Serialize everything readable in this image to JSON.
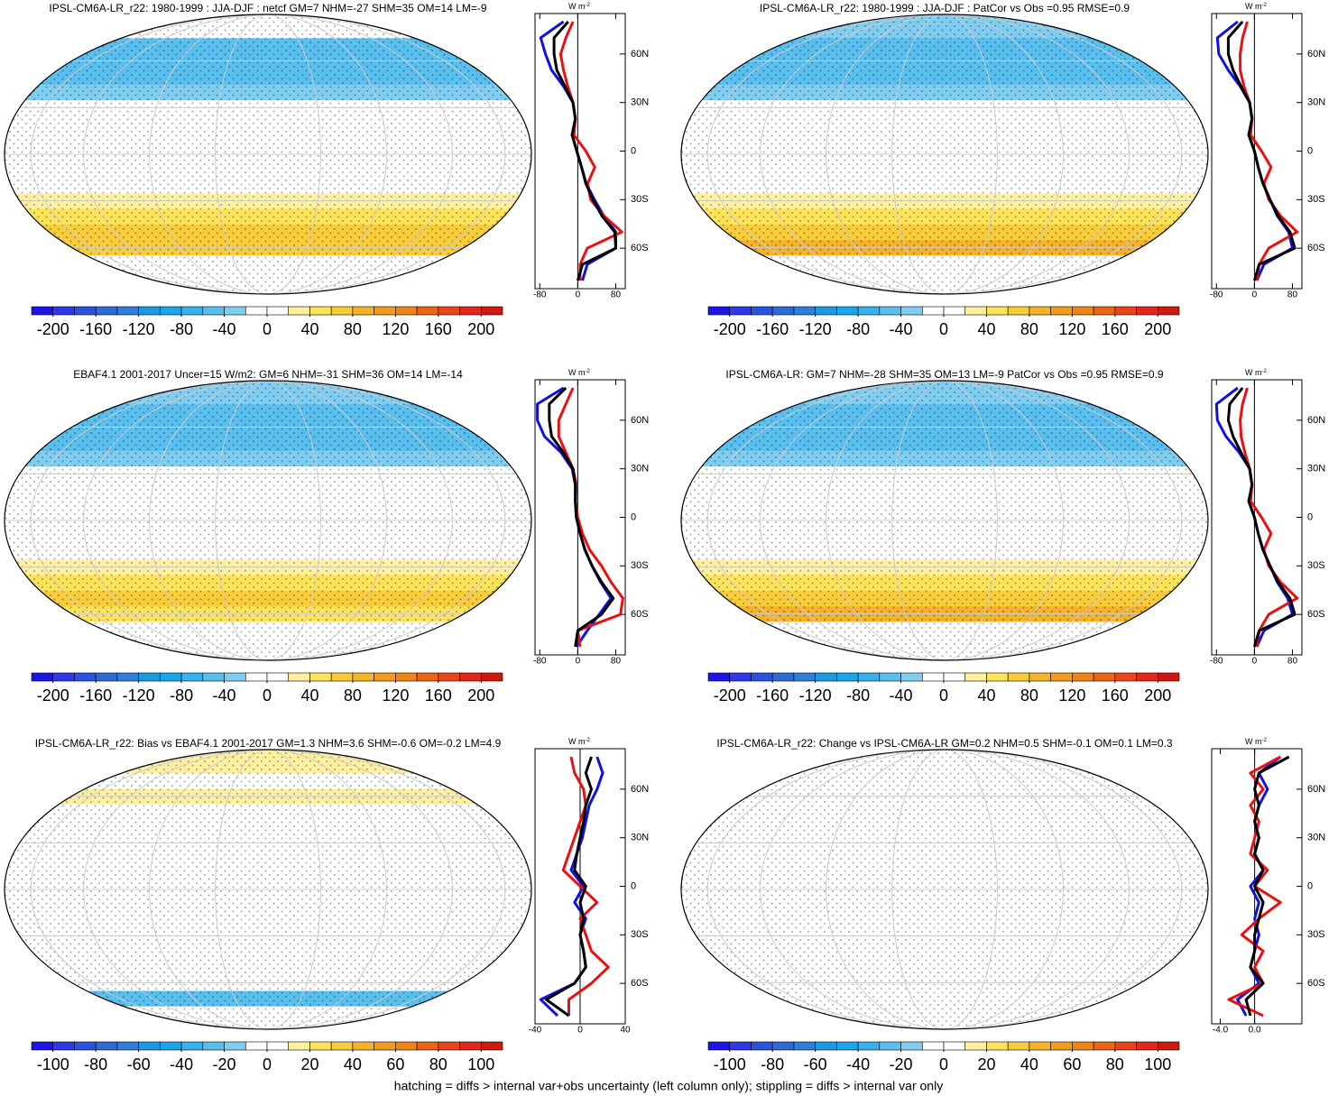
{
  "chart_data": [
    {
      "type": "zonal-map",
      "title": "IPSL-CM6A-LR_r22: 1980-1999 : JJA-DJF : netcf GM=7 NHM=-27 SHM=35 OM=14 LM=-9",
      "unit": "W m",
      "unit_sup": "-2",
      "y": [
        -80,
        -70,
        -60,
        -50,
        -40,
        -30,
        -20,
        -10,
        0,
        10,
        20,
        30,
        40,
        50,
        60,
        70,
        80
      ],
      "series": [
        {
          "color": "#1010e0",
          "values": [
            10,
            20,
            80,
            80,
            55,
            35,
            18,
            8,
            -2,
            -12,
            -5,
            -10,
            -30,
            -55,
            -68,
            -78,
            -30
          ]
        },
        {
          "color": "#e81010",
          "values": [
            5,
            5,
            20,
            93,
            55,
            27,
            21,
            36,
            17,
            -8,
            -5,
            -10,
            -21,
            -30,
            -36,
            -25,
            -10
          ]
        },
        {
          "color": "#000000",
          "values": [
            0,
            10,
            80,
            78,
            51,
            32,
            17,
            8,
            -2,
            -12,
            -5,
            -10,
            -27,
            -44,
            -50,
            -50,
            -20
          ]
        }
      ],
      "xlim": [
        -90,
        100
      ],
      "xticks": [
        -80,
        0,
        80
      ],
      "ylim": [
        -85,
        85
      ],
      "yticks": [
        {
          "value": 60,
          "label": "60N"
        },
        {
          "value": 30,
          "label": "30N"
        },
        0,
        {
          "value": -30,
          "label": "30S"
        },
        {
          "value": -60,
          "label": "60S"
        }
      ],
      "colorbar": {
        "lim": [
          -220,
          220
        ],
        "ticks": [
          -200,
          -160,
          -120,
          -80,
          -40,
          0,
          40,
          80,
          120,
          160,
          200
        ]
      }
    },
    {
      "type": "zonal-map",
      "title": "IPSL-CM6A-LR_r22: 1980-1999 : JJA-DJF : PatCor vs Obs =0.95 RMSE=0.9",
      "unit": "W m",
      "unit_sup": "-2",
      "y": [
        -80,
        -70,
        -60,
        -50,
        -40,
        -30,
        -20,
        -10,
        0,
        10,
        20,
        30,
        40,
        50,
        60,
        70,
        80
      ],
      "series": [
        {
          "color": "#1010e0",
          "values": [
            5,
            20,
            80,
            72,
            48,
            33,
            18,
            8,
            0,
            -12,
            -5,
            -10,
            -30,
            -55,
            -75,
            -78,
            -35
          ]
        },
        {
          "color": "#e81010",
          "values": [
            5,
            10,
            30,
            90,
            55,
            30,
            20,
            35,
            15,
            -8,
            -5,
            -10,
            -22,
            -30,
            -30,
            -25,
            -15
          ]
        },
        {
          "color": "#000000",
          "values": [
            0,
            10,
            85,
            75,
            50,
            33,
            18,
            8,
            0,
            -12,
            -5,
            -10,
            -28,
            -45,
            -55,
            -55,
            -25
          ]
        }
      ],
      "xlim": [
        -90,
        100
      ],
      "xticks": [
        -80,
        0,
        80
      ],
      "ylim": [
        -85,
        85
      ],
      "yticks": [
        {
          "value": 60,
          "label": "60N"
        },
        {
          "value": 30,
          "label": "30N"
        },
        0,
        {
          "value": -30,
          "label": "30S"
        },
        {
          "value": -60,
          "label": "60S"
        }
      ],
      "colorbar": {
        "lim": [
          -220,
          220
        ],
        "ticks": [
          -200,
          -160,
          -120,
          -80,
          -40,
          0,
          40,
          80,
          120,
          160,
          200
        ]
      }
    },
    {
      "type": "zonal-map",
      "title": "EBAF4.1 2001-2017 Uncer=15 W/m2: GM=6 NHM=-31 SHM=36 OM=14 LM=-14",
      "unit": "W m",
      "unit_sup": "-2",
      "y": [
        -80,
        -70,
        -60,
        -50,
        -40,
        -30,
        -20,
        -10,
        0,
        10,
        20,
        30,
        40,
        50,
        60,
        70,
        80
      ],
      "series": [
        {
          "color": "#1010e0",
          "values": [
            -3,
            20,
            45,
            70,
            48,
            30,
            15,
            5,
            -3,
            -5,
            -5,
            -12,
            -35,
            -70,
            -85,
            -85,
            -30
          ]
        },
        {
          "color": "#e81010",
          "values": [
            5,
            0,
            90,
            95,
            70,
            50,
            25,
            10,
            0,
            -5,
            -3,
            -10,
            -25,
            -40,
            -40,
            -25,
            -10
          ]
        },
        {
          "color": "#000000",
          "values": [
            -5,
            0,
            50,
            75,
            50,
            30,
            15,
            5,
            -3,
            -5,
            -5,
            -10,
            -30,
            -55,
            -60,
            -60,
            -25
          ]
        }
      ],
      "xlim": [
        -90,
        100
      ],
      "xticks": [
        -80,
        0,
        80
      ],
      "ylim": [
        -85,
        85
      ],
      "yticks": [
        {
          "value": 60,
          "label": "60N"
        },
        {
          "value": 30,
          "label": "30N"
        },
        0,
        {
          "value": -30,
          "label": "30S"
        },
        {
          "value": -60,
          "label": "60S"
        }
      ],
      "colorbar": {
        "lim": [
          -220,
          220
        ],
        "ticks": [
          -200,
          -160,
          -120,
          -80,
          -40,
          0,
          40,
          80,
          120,
          160,
          200
        ]
      }
    },
    {
      "type": "zonal-map",
      "title": "IPSL-CM6A-LR: GM=7 NHM=-28 SHM=35 OM=13 LM=-9 PatCor vs Obs =0.95 RMSE=0.9",
      "unit": "W m",
      "unit_sup": "-2",
      "y": [
        -80,
        -70,
        -60,
        -50,
        -40,
        -30,
        -20,
        -10,
        0,
        10,
        20,
        30,
        40,
        50,
        60,
        70,
        80
      ],
      "series": [
        {
          "color": "#1010e0",
          "values": [
            5,
            20,
            80,
            70,
            48,
            33,
            18,
            8,
            0,
            -12,
            -5,
            -10,
            -32,
            -60,
            -78,
            -80,
            -35
          ]
        },
        {
          "color": "#e81010",
          "values": [
            5,
            10,
            30,
            90,
            55,
            30,
            20,
            35,
            15,
            -8,
            -5,
            -10,
            -20,
            -28,
            -30,
            -25,
            -15
          ]
        },
        {
          "color": "#000000",
          "values": [
            0,
            10,
            85,
            75,
            50,
            33,
            18,
            8,
            0,
            -12,
            -5,
            -10,
            -28,
            -45,
            -55,
            -52,
            -25
          ]
        }
      ],
      "xlim": [
        -90,
        100
      ],
      "xticks": [
        -80,
        0,
        80
      ],
      "ylim": [
        -85,
        85
      ],
      "yticks": [
        {
          "value": 60,
          "label": "60N"
        },
        {
          "value": 30,
          "label": "30N"
        },
        0,
        {
          "value": -30,
          "label": "30S"
        },
        {
          "value": -60,
          "label": "60S"
        }
      ],
      "colorbar": {
        "lim": [
          -220,
          220
        ],
        "ticks": [
          -200,
          -160,
          -120,
          -80,
          -40,
          0,
          40,
          80,
          120,
          160,
          200
        ]
      }
    },
    {
      "type": "zonal-map",
      "title": "IPSL-CM6A-LR_r22: Bias vs EBAF4.1 2001-2017 GM=1.3 NHM=3.6 SHM=-0.6 OM=-0.2 LM=4.9",
      "unit": "W m",
      "unit_sup": "-2",
      "y": [
        -80,
        -70,
        -60,
        -50,
        -40,
        -30,
        -20,
        -10,
        0,
        10,
        20,
        30,
        40,
        50,
        60,
        70,
        80
      ],
      "series": [
        {
          "color": "#1010e0",
          "values": [
            -20,
            -35,
            -5,
            5,
            3,
            0,
            5,
            -5,
            3,
            -8,
            -3,
            2,
            5,
            8,
            15,
            20,
            15
          ]
        },
        {
          "color": "#e81010",
          "values": [
            -10,
            -10,
            10,
            25,
            10,
            5,
            0,
            15,
            0,
            -15,
            -10,
            -5,
            0,
            5,
            3,
            -5,
            -8
          ]
        },
        {
          "color": "#000000",
          "values": [
            -10,
            -30,
            -5,
            5,
            3,
            0,
            3,
            0,
            5,
            -5,
            -3,
            0,
            3,
            5,
            10,
            5,
            10
          ]
        }
      ],
      "xlim": [
        -40,
        40
      ],
      "xticks": [
        -40,
        0,
        40
      ],
      "ylim": [
        -85,
        85
      ],
      "yticks": [
        {
          "value": 60,
          "label": "60N"
        },
        {
          "value": 30,
          "label": "30N"
        },
        0,
        {
          "value": -30,
          "label": "30S"
        },
        {
          "value": -60,
          "label": "60S"
        }
      ],
      "colorbar": {
        "lim": [
          -110,
          110
        ],
        "ticks": [
          -100,
          -80,
          -60,
          -40,
          -20,
          0,
          20,
          40,
          60,
          80,
          100
        ]
      }
    },
    {
      "type": "zonal-map",
      "title": "IPSL-CM6A-LR_r22: Change vs IPSL-CM6A-LR GM=0.2 NHM=0.5 SHM=-0.1 OM=0.1 LM=0.3",
      "unit": "W m",
      "unit_sup": "-2",
      "y": [
        -80,
        -70,
        -60,
        -50,
        -40,
        -30,
        -20,
        -10,
        0,
        10,
        20,
        30,
        40,
        50,
        60,
        70,
        80
      ],
      "series": [
        {
          "color": "#1010e0",
          "values": [
            -1,
            -2,
            0.5,
            -0.5,
            0,
            0.5,
            0,
            0.5,
            -0.5,
            1,
            0,
            0.5,
            0,
            0.5,
            1.5,
            0.5,
            3
          ]
        },
        {
          "color": "#e81010",
          "values": [
            1,
            -3,
            1,
            0,
            1,
            -1.5,
            0.5,
            3,
            0,
            1.5,
            -0.5,
            0,
            0.5,
            -0.5,
            1,
            -0.5,
            3
          ]
        },
        {
          "color": "#000000",
          "values": [
            -0.5,
            -1,
            1,
            -0.5,
            0,
            0,
            0.5,
            1,
            0,
            1,
            0,
            0.5,
            0,
            0.5,
            0,
            0.5,
            4
          ]
        }
      ],
      "xlim": [
        -5,
        5.5
      ],
      "xticks": [
        {
          "value": -4,
          "label": "-4.0"
        },
        {
          "value": 0,
          "label": "0.0"
        }
      ],
      "ylim": [
        -85,
        85
      ],
      "yticks": [
        {
          "value": 60,
          "label": "60N"
        },
        {
          "value": 30,
          "label": "30N"
        },
        0,
        {
          "value": -30,
          "label": "30S"
        },
        {
          "value": -60,
          "label": "60S"
        }
      ],
      "colorbar": {
        "lim": [
          -110,
          110
        ],
        "ticks": [
          -100,
          -80,
          -60,
          -40,
          -20,
          0,
          20,
          40,
          60,
          80,
          100
        ]
      }
    }
  ],
  "colorbar_colors": [
    "#1f14e8",
    "#2f3ae6",
    "#2b52dc",
    "#2e6ad4",
    "#2f7fd9",
    "#1f98e0",
    "#1aa7ea",
    "#38b2ec",
    "#59bfee",
    "#7fcdf0",
    "#ffffff",
    "#ffffff",
    "#fff0a0",
    "#fde35a",
    "#f8cc3a",
    "#f5b32a",
    "#f29c1f",
    "#ef8418",
    "#ea6516",
    "#e8451a",
    "#e5261c",
    "#cc1a10"
  ],
  "footer": "hatching = diffs > internal var+obs uncertainty (left column only); stippling = diffs > internal var only"
}
